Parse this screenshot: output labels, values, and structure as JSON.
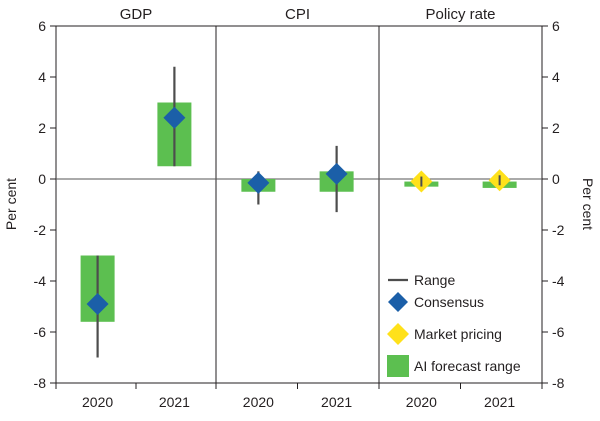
{
  "chart_data": {
    "type": "range-panel",
    "ylabel_left": "Per cent",
    "ylabel_right": "Per cent",
    "ylim": [
      -8,
      6
    ],
    "yticks": [
      "-8",
      "-6",
      "-4",
      "-2",
      "0",
      "2",
      "4",
      "6"
    ],
    "ytick_values": [
      -8,
      -6,
      -4,
      -2,
      0,
      2,
      4,
      6
    ],
    "categories": [
      "2020",
      "2021"
    ],
    "panels": [
      {
        "title": "GDP",
        "points": [
          {
            "year": "2020",
            "range": [
              -7.0,
              -3.0
            ],
            "ai_range": [
              -5.6,
              -3.0
            ],
            "value": -4.9,
            "marker": "Consensus"
          },
          {
            "year": "2021",
            "range": [
              0.5,
              4.4
            ],
            "ai_range": [
              0.5,
              3.0
            ],
            "value": 2.4,
            "marker": "Consensus"
          }
        ]
      },
      {
        "title": "CPI",
        "points": [
          {
            "year": "2020",
            "range": [
              -1.0,
              0.3
            ],
            "ai_range": [
              -0.5,
              0.0
            ],
            "value": -0.15,
            "marker": "Consensus"
          },
          {
            "year": "2021",
            "range": [
              -1.3,
              1.3
            ],
            "ai_range": [
              -0.5,
              0.3
            ],
            "value": 0.2,
            "marker": "Consensus"
          }
        ]
      },
      {
        "title": "Policy rate",
        "points": [
          {
            "year": "2020",
            "range": [
              -0.2,
              0.05
            ],
            "ai_range": [
              -0.3,
              -0.1
            ],
            "value": -0.1,
            "marker": "Market pricing"
          },
          {
            "year": "2021",
            "range": [
              -0.2,
              0.05
            ],
            "ai_range": [
              -0.35,
              -0.1
            ],
            "value": -0.05,
            "marker": "Market pricing"
          }
        ]
      }
    ],
    "legend": [
      {
        "label": "Range",
        "symbol": "line"
      },
      {
        "label": "Consensus",
        "symbol": "diamond-blue"
      },
      {
        "label": "Market pricing",
        "symbol": "diamond-yellow"
      },
      {
        "label": "AI forecast range",
        "symbol": "square-green"
      }
    ],
    "colors": {
      "range": "#4d4d4d",
      "consensus": "#1b5fa8",
      "market": "#ffe11a",
      "ai": "#5cbf50",
      "axis": "#231f20",
      "zero": "#555555"
    },
    "legend_position": "bottom-right"
  }
}
